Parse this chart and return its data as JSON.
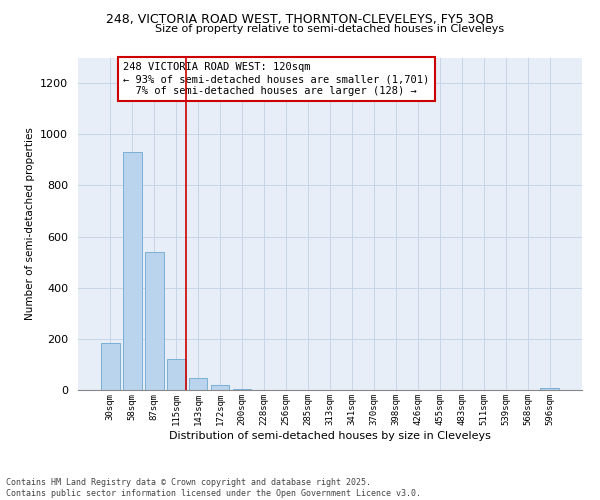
{
  "title1": "248, VICTORIA ROAD WEST, THORNTON-CLEVELEYS, FY5 3QB",
  "title2": "Size of property relative to semi-detached houses in Cleveleys",
  "xlabel": "Distribution of semi-detached houses by size in Cleveleys",
  "ylabel": "Number of semi-detached properties",
  "categories": [
    "30sqm",
    "58sqm",
    "87sqm",
    "115sqm",
    "143sqm",
    "172sqm",
    "200sqm",
    "228sqm",
    "256sqm",
    "285sqm",
    "313sqm",
    "341sqm",
    "370sqm",
    "398sqm",
    "426sqm",
    "455sqm",
    "483sqm",
    "511sqm",
    "539sqm",
    "568sqm",
    "596sqm"
  ],
  "values": [
    185,
    930,
    540,
    120,
    45,
    18,
    5,
    0,
    0,
    0,
    0,
    0,
    0,
    0,
    0,
    0,
    0,
    0,
    0,
    0,
    8
  ],
  "bar_color": "#bad4ed",
  "bar_edge_color": "#7aafd4",
  "vline_color": "#cc0000",
  "annotation_text": "248 VICTORIA ROAD WEST: 120sqm\n← 93% of semi-detached houses are smaller (1,701)\n  7% of semi-detached houses are larger (128) →",
  "annotation_box_color": "#cc0000",
  "footnote": "Contains HM Land Registry data © Crown copyright and database right 2025.\nContains public sector information licensed under the Open Government Licence v3.0.",
  "ylim": [
    0,
    1300
  ],
  "yticks": [
    0,
    200,
    400,
    600,
    800,
    1000,
    1200
  ],
  "grid_color": "#c8d4e8",
  "bg_color": "#e8eef8"
}
